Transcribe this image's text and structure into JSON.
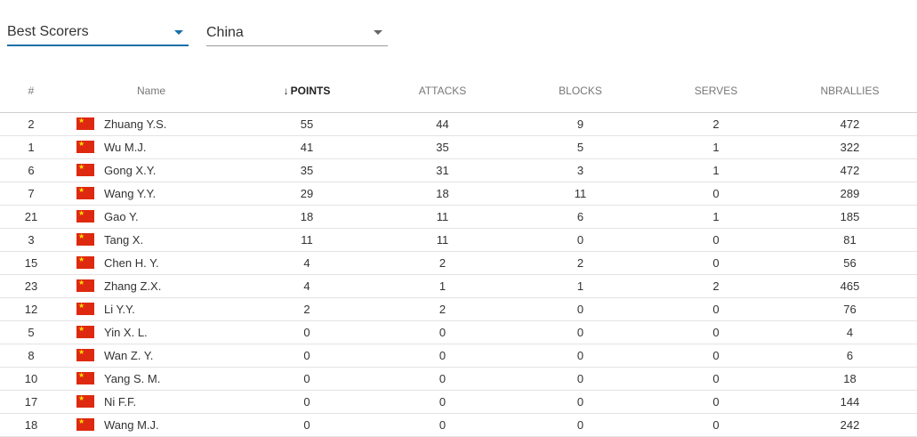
{
  "filters": {
    "category": "Best Scorers",
    "team": "China"
  },
  "columns": {
    "rank": "#",
    "name": "Name",
    "sort_icon": "↓",
    "points": "POINTS",
    "attacks": "ATTACKS",
    "blocks": "BLOCKS",
    "serves": "SERVES",
    "nbrallies": "NBRALLIES"
  },
  "colors": {
    "accent": "#1b6fa8",
    "flag_red": "#de2910",
    "flag_star": "#ffde00"
  },
  "rows": [
    {
      "rank": "2",
      "name": "Zhuang Y.S.",
      "points": "55",
      "attacks": "44",
      "blocks": "9",
      "serves": "2",
      "nbrallies": "472"
    },
    {
      "rank": "1",
      "name": "Wu M.J.",
      "points": "41",
      "attacks": "35",
      "blocks": "5",
      "serves": "1",
      "nbrallies": "322"
    },
    {
      "rank": "6",
      "name": "Gong X.Y.",
      "points": "35",
      "attacks": "31",
      "blocks": "3",
      "serves": "1",
      "nbrallies": "472"
    },
    {
      "rank": "7",
      "name": "Wang Y.Y.",
      "points": "29",
      "attacks": "18",
      "blocks": "11",
      "serves": "0",
      "nbrallies": "289"
    },
    {
      "rank": "21",
      "name": "Gao Y.",
      "points": "18",
      "attacks": "11",
      "blocks": "6",
      "serves": "1",
      "nbrallies": "185"
    },
    {
      "rank": "3",
      "name": "Tang X.",
      "points": "11",
      "attacks": "11",
      "blocks": "0",
      "serves": "0",
      "nbrallies": "81"
    },
    {
      "rank": "15",
      "name": "Chen H. Y.",
      "points": "4",
      "attacks": "2",
      "blocks": "2",
      "serves": "0",
      "nbrallies": "56"
    },
    {
      "rank": "23",
      "name": "Zhang Z.X.",
      "points": "4",
      "attacks": "1",
      "blocks": "1",
      "serves": "2",
      "nbrallies": "465"
    },
    {
      "rank": "12",
      "name": "Li Y.Y.",
      "points": "2",
      "attacks": "2",
      "blocks": "0",
      "serves": "0",
      "nbrallies": "76"
    },
    {
      "rank": "5",
      "name": "Yin X. L.",
      "points": "0",
      "attacks": "0",
      "blocks": "0",
      "serves": "0",
      "nbrallies": "4"
    },
    {
      "rank": "8",
      "name": "Wan Z. Y.",
      "points": "0",
      "attacks": "0",
      "blocks": "0",
      "serves": "0",
      "nbrallies": "6"
    },
    {
      "rank": "10",
      "name": "Yang S. M.",
      "points": "0",
      "attacks": "0",
      "blocks": "0",
      "serves": "0",
      "nbrallies": "18"
    },
    {
      "rank": "17",
      "name": "Ni F.F.",
      "points": "0",
      "attacks": "0",
      "blocks": "0",
      "serves": "0",
      "nbrallies": "144"
    },
    {
      "rank": "18",
      "name": "Wang M.J.",
      "points": "0",
      "attacks": "0",
      "blocks": "0",
      "serves": "0",
      "nbrallies": "242"
    }
  ]
}
